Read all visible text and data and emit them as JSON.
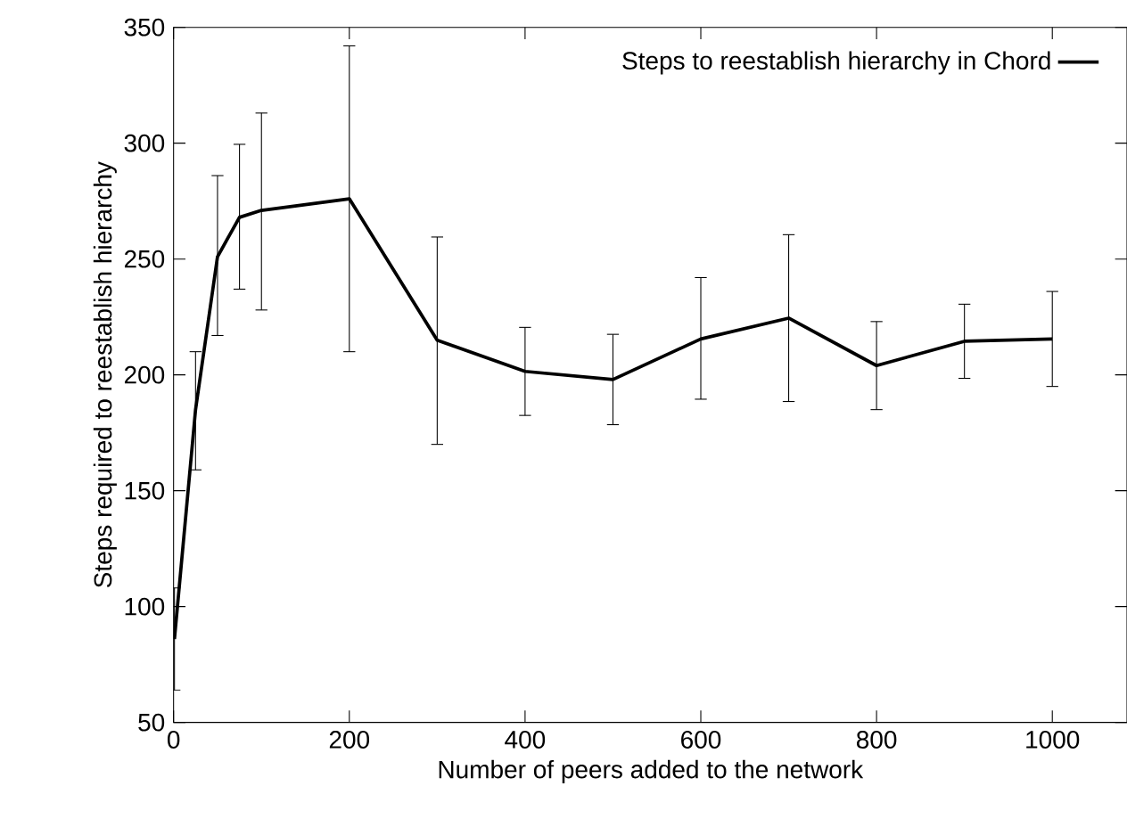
{
  "chart_data": {
    "type": "line",
    "xlabel": "Number of peers added to the network",
    "ylabel": "Steps required to reestablish hierarchy",
    "x": [
      1,
      25,
      50,
      75,
      100,
      200,
      300,
      400,
      500,
      600,
      700,
      800,
      900,
      1000
    ],
    "series": [
      {
        "name": "Steps to reestablish hierarchy in Chord",
        "color": "#000000",
        "values": [
          86,
          185,
          251,
          268,
          271,
          276,
          215,
          201.5,
          198,
          215.5,
          224.5,
          204,
          214.5,
          215.5
        ],
        "errors": [
          [
            64,
            108
          ],
          [
            159,
            210
          ],
          [
            217,
            286
          ],
          [
            237,
            299.5
          ],
          [
            228,
            313
          ],
          [
            210,
            342
          ],
          [
            170,
            259.5
          ],
          [
            182.5,
            220.5
          ],
          [
            178.5,
            217.5
          ],
          [
            189.5,
            242
          ],
          [
            188.5,
            260.5
          ],
          [
            185,
            223
          ],
          [
            198.5,
            230.5
          ],
          [
            195,
            236
          ]
        ]
      }
    ],
    "xlim": [
      0,
      1085
    ],
    "ylim": [
      50,
      350
    ],
    "xticks": [
      0,
      200,
      400,
      600,
      800,
      1000
    ],
    "yticks": [
      50,
      100,
      150,
      200,
      250,
      300,
      350
    ],
    "grid": false,
    "legend": "top right",
    "marker": "none",
    "line_style": "solid"
  }
}
